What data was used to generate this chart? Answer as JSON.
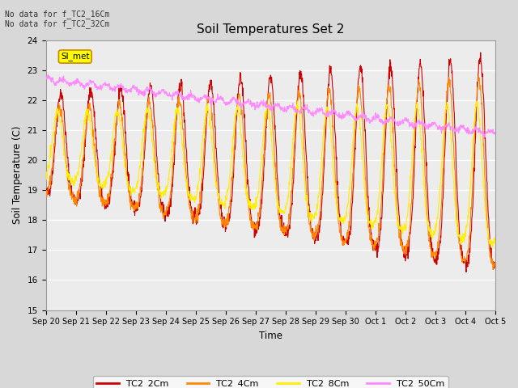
{
  "title": "Soil Temperatures Set 2",
  "xlabel": "Time",
  "ylabel": "Soil Temperature (C)",
  "ylim": [
    15.0,
    24.0
  ],
  "yticks": [
    15.0,
    16.0,
    17.0,
    18.0,
    19.0,
    20.0,
    21.0,
    22.0,
    23.0,
    24.0
  ],
  "annotation_text": "No data for f_TC2_16Cm\nNo data for f_TC2_32Cm",
  "si_met_label": "SI_met",
  "legend_entries": [
    "TC2_2Cm",
    "TC2_4Cm",
    "TC2_8Cm",
    "TC2_50Cm"
  ],
  "line_colors": [
    "#cc0000",
    "#ff8800",
    "#ffee00",
    "#ff88ff"
  ],
  "background_color": "#d8d8d8",
  "plot_bg_color": "#ececec",
  "grid_color": "#ffffff",
  "tick_labels": [
    "Sep 20",
    "Sep 21",
    "Sep 22",
    "Sep 23",
    "Sep 24",
    "Sep 25",
    "Sep 26",
    "Sep 27",
    "Sep 28",
    "Sep 29",
    "Sep 30",
    "Oct 1",
    "Oct 2",
    "Oct 3",
    "Oct 4",
    "Oct 5"
  ],
  "figsize": [
    6.4,
    4.8
  ],
  "dpi": 100
}
